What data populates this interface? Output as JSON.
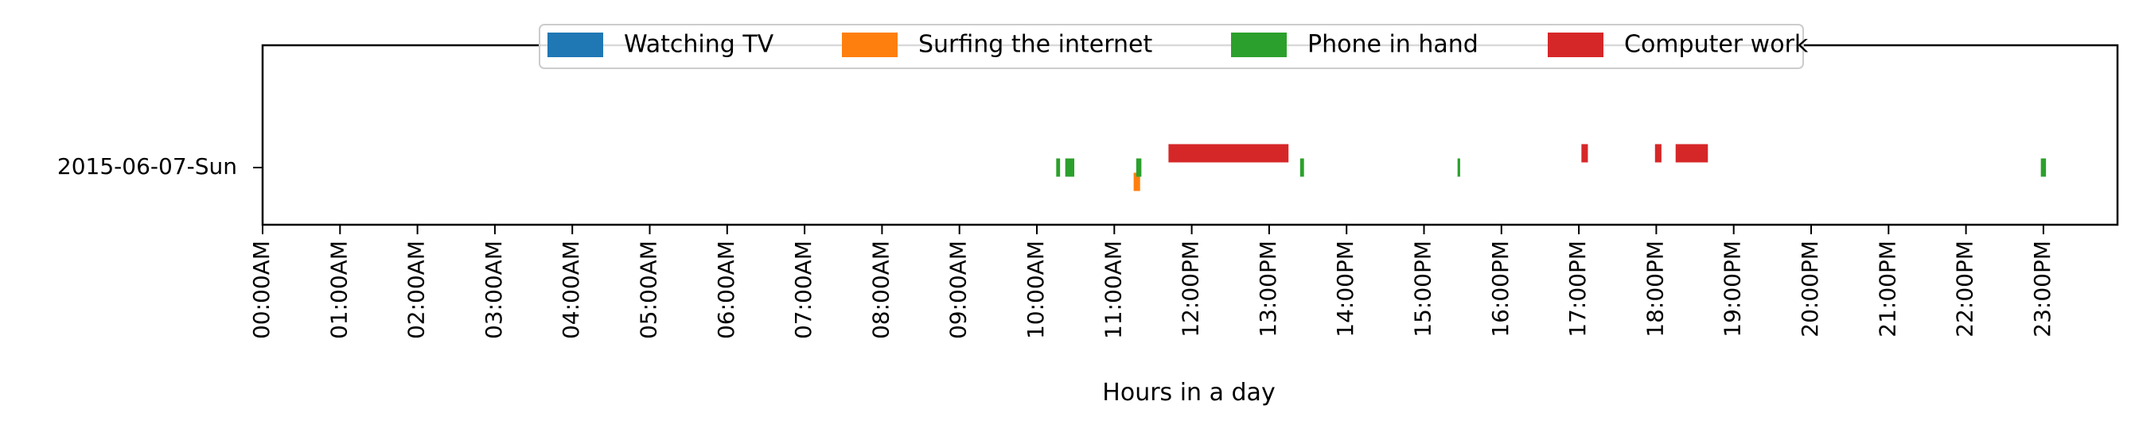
{
  "chart_data": {
    "type": "timeline",
    "xlabel": "Hours in a day",
    "ylabel": "",
    "x_unit": "hours",
    "xlim": [
      "00:00",
      "24:00"
    ],
    "rows": [
      "2015-06-07-Sun"
    ],
    "x_tick_labels": [
      "00:00AM",
      "01:00AM",
      "02:00AM",
      "03:00AM",
      "04:00AM",
      "05:00AM",
      "06:00AM",
      "07:00AM",
      "08:00AM",
      "09:00AM",
      "10:00AM",
      "11:00AM",
      "12:00PM",
      "13:00PM",
      "14:00PM",
      "15:00PM",
      "16:00PM",
      "17:00PM",
      "18:00PM",
      "19:00PM",
      "20:00PM",
      "21:00PM",
      "22:00PM",
      "23:00PM"
    ],
    "legend_position": "top-center",
    "series": [
      {
        "name": "Watching TV",
        "color": "#1f77b4",
        "segments": []
      },
      {
        "name": "Surfing the internet",
        "color": "#ff7f0e",
        "segments": [
          {
            "row": "2015-06-07-Sun",
            "start": "11:15",
            "end": "11:20"
          }
        ]
      },
      {
        "name": "Phone in hand",
        "color": "#2ca02c",
        "segments": [
          {
            "row": "2015-06-07-Sun",
            "start": "10:15",
            "end": "10:18"
          },
          {
            "row": "2015-06-07-Sun",
            "start": "10:22",
            "end": "10:29"
          },
          {
            "row": "2015-06-07-Sun",
            "start": "11:17",
            "end": "11:21"
          },
          {
            "row": "2015-06-07-Sun",
            "start": "13:24",
            "end": "13:27"
          },
          {
            "row": "2015-06-07-Sun",
            "start": "15:26",
            "end": "15:28"
          },
          {
            "row": "2015-06-07-Sun",
            "start": "22:58",
            "end": "23:02"
          }
        ]
      },
      {
        "name": "Computer work",
        "color": "#d62728",
        "segments": [
          {
            "row": "2015-06-07-Sun",
            "start": "11:42",
            "end": "13:15"
          },
          {
            "row": "2015-06-07-Sun",
            "start": "17:02",
            "end": "17:07"
          },
          {
            "row": "2015-06-07-Sun",
            "start": "17:59",
            "end": "18:04"
          },
          {
            "row": "2015-06-07-Sun",
            "start": "18:15",
            "end": "18:40"
          }
        ]
      }
    ]
  }
}
